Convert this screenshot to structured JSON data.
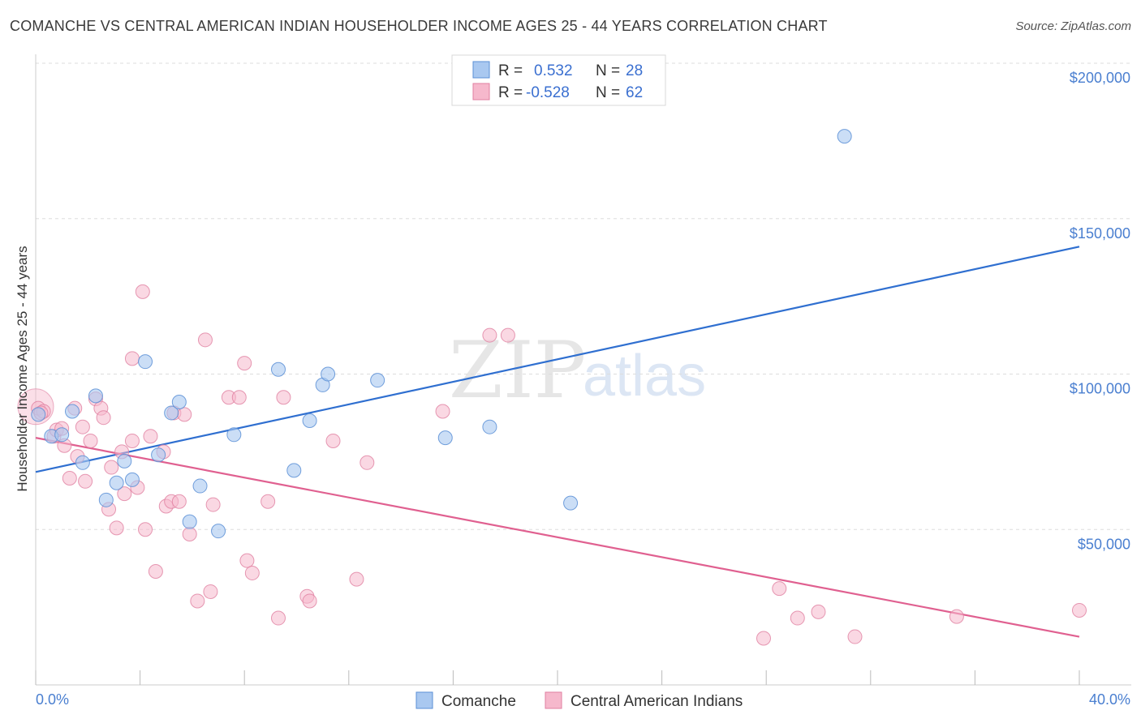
{
  "header": {
    "title": "COMANCHE VS CENTRAL AMERICAN INDIAN HOUSEHOLDER INCOME AGES 25 - 44 YEARS CORRELATION CHART",
    "source": "Source: ZipAtlas.com"
  },
  "watermark": {
    "zip": "ZIP",
    "atlas": "atlas"
  },
  "legend": {
    "rows": [
      {
        "r_label": "R =",
        "r_value": "0.532",
        "n_label": "N =",
        "n_value": "28",
        "color": "#a9c8f0"
      },
      {
        "r_label": "R =",
        "r_value": "-0.528",
        "n_label": "N =",
        "n_value": "62",
        "color": "#f6b8cc"
      }
    ]
  },
  "bottom_legend": [
    "Comanche",
    "Central American Indians"
  ],
  "colors": {
    "comanche_fill": "#a9c8f0",
    "comanche_stroke": "#5b8fd6",
    "comanche_line": "#2f6fd0",
    "cai_fill": "#f6b8cc",
    "cai_stroke": "#e07fa0",
    "cai_line": "#e06090",
    "grid": "#dddddd",
    "axis_label": "#4a7fd0"
  },
  "chart_data": {
    "type": "scatter",
    "title": "COMANCHE VS CENTRAL AMERICAN INDIAN HOUSEHOLDER INCOME AGES 25 - 44 YEARS CORRELATION CHART",
    "xlabel": "",
    "ylabel": "Householder Income Ages 25 - 44 years",
    "xlim": [
      0,
      40
    ],
    "ylim": [
      0,
      210000
    ],
    "x_tick_labels": [
      "0.0%",
      "40.0%"
    ],
    "y_ticks": [
      50000,
      100000,
      150000,
      200000
    ],
    "y_tick_labels": [
      "$50,000",
      "$100,000",
      "$150,000",
      "$200,000"
    ],
    "grid": true,
    "legend_position": "top-center",
    "series": [
      {
        "name": "Comanche",
        "R": 0.532,
        "N": 28,
        "trend": {
          "x": [
            0,
            40
          ],
          "y": [
            68500,
            141000
          ]
        },
        "points": [
          {
            "x": 0.1,
            "y": 87000
          },
          {
            "x": 0.6,
            "y": 80000
          },
          {
            "x": 1.0,
            "y": 80500
          },
          {
            "x": 1.4,
            "y": 88000
          },
          {
            "x": 1.8,
            "y": 71500
          },
          {
            "x": 2.3,
            "y": 93000
          },
          {
            "x": 2.7,
            "y": 59500
          },
          {
            "x": 3.1,
            "y": 65000
          },
          {
            "x": 3.4,
            "y": 72000
          },
          {
            "x": 3.7,
            "y": 66000
          },
          {
            "x": 4.2,
            "y": 104000
          },
          {
            "x": 4.7,
            "y": 74000
          },
          {
            "x": 5.2,
            "y": 87500
          },
          {
            "x": 5.5,
            "y": 91000
          },
          {
            "x": 5.9,
            "y": 52500
          },
          {
            "x": 6.3,
            "y": 64000
          },
          {
            "x": 7.0,
            "y": 49500
          },
          {
            "x": 7.6,
            "y": 80500
          },
          {
            "x": 9.3,
            "y": 101500
          },
          {
            "x": 9.9,
            "y": 69000
          },
          {
            "x": 10.5,
            "y": 85000
          },
          {
            "x": 11.0,
            "y": 96500
          },
          {
            "x": 11.2,
            "y": 100000
          },
          {
            "x": 13.1,
            "y": 98000
          },
          {
            "x": 15.7,
            "y": 79500
          },
          {
            "x": 17.4,
            "y": 83000
          },
          {
            "x": 20.5,
            "y": 58500
          },
          {
            "x": 31.0,
            "y": 176500
          }
        ]
      },
      {
        "name": "Central American Indians",
        "R": -0.528,
        "N": 62,
        "trend": {
          "x": [
            0,
            40
          ],
          "y": [
            79500,
            15500
          ]
        },
        "points": [
          {
            "x": 0.1,
            "y": 89000
          },
          {
            "x": 0.3,
            "y": 88000
          },
          {
            "x": 0.7,
            "y": 80000
          },
          {
            "x": 0.8,
            "y": 82000
          },
          {
            "x": 1.1,
            "y": 77000
          },
          {
            "x": 1.3,
            "y": 66500
          },
          {
            "x": 1.5,
            "y": 89000
          },
          {
            "x": 1.6,
            "y": 73500
          },
          {
            "x": 1.8,
            "y": 83000
          },
          {
            "x": 1.9,
            "y": 65500
          },
          {
            "x": 2.1,
            "y": 78500
          },
          {
            "x": 2.3,
            "y": 92000
          },
          {
            "x": 2.5,
            "y": 89000
          },
          {
            "x": 2.6,
            "y": 86000
          },
          {
            "x": 2.8,
            "y": 56500
          },
          {
            "x": 2.9,
            "y": 70000
          },
          {
            "x": 3.1,
            "y": 50500
          },
          {
            "x": 3.3,
            "y": 75000
          },
          {
            "x": 3.4,
            "y": 61500
          },
          {
            "x": 3.7,
            "y": 105000
          },
          {
            "x": 3.7,
            "y": 78500
          },
          {
            "x": 3.9,
            "y": 63500
          },
          {
            "x": 4.1,
            "y": 126500
          },
          {
            "x": 4.2,
            "y": 50000
          },
          {
            "x": 4.4,
            "y": 80000
          },
          {
            "x": 4.6,
            "y": 36500
          },
          {
            "x": 4.9,
            "y": 75000
          },
          {
            "x": 5.0,
            "y": 57500
          },
          {
            "x": 5.2,
            "y": 59000
          },
          {
            "x": 5.3,
            "y": 87500
          },
          {
            "x": 5.5,
            "y": 59000
          },
          {
            "x": 5.7,
            "y": 87000
          },
          {
            "x": 5.9,
            "y": 48500
          },
          {
            "x": 6.2,
            "y": 27000
          },
          {
            "x": 6.5,
            "y": 111000
          },
          {
            "x": 6.7,
            "y": 30000
          },
          {
            "x": 6.8,
            "y": 58000
          },
          {
            "x": 7.4,
            "y": 92500
          },
          {
            "x": 7.8,
            "y": 92500
          },
          {
            "x": 8.0,
            "y": 103500
          },
          {
            "x": 8.1,
            "y": 40000
          },
          {
            "x": 8.3,
            "y": 36000
          },
          {
            "x": 8.9,
            "y": 59000
          },
          {
            "x": 9.3,
            "y": 21500
          },
          {
            "x": 9.5,
            "y": 92500
          },
          {
            "x": 10.4,
            "y": 28500
          },
          {
            "x": 10.5,
            "y": 27000
          },
          {
            "x": 11.4,
            "y": 78500
          },
          {
            "x": 12.3,
            "y": 34000
          },
          {
            "x": 12.7,
            "y": 71500
          },
          {
            "x": 15.6,
            "y": 88000
          },
          {
            "x": 17.4,
            "y": 112500
          },
          {
            "x": 18.1,
            "y": 112500
          },
          {
            "x": 28.5,
            "y": 31000
          },
          {
            "x": 27.9,
            "y": 15000
          },
          {
            "x": 29.2,
            "y": 21500
          },
          {
            "x": 30.0,
            "y": 23500
          },
          {
            "x": 31.4,
            "y": 15500
          },
          {
            "x": 35.3,
            "y": 22000
          },
          {
            "x": 40.0,
            "y": 24000
          },
          {
            "x": 0.2,
            "y": 87500
          },
          {
            "x": 1.0,
            "y": 82500
          }
        ]
      }
    ]
  }
}
